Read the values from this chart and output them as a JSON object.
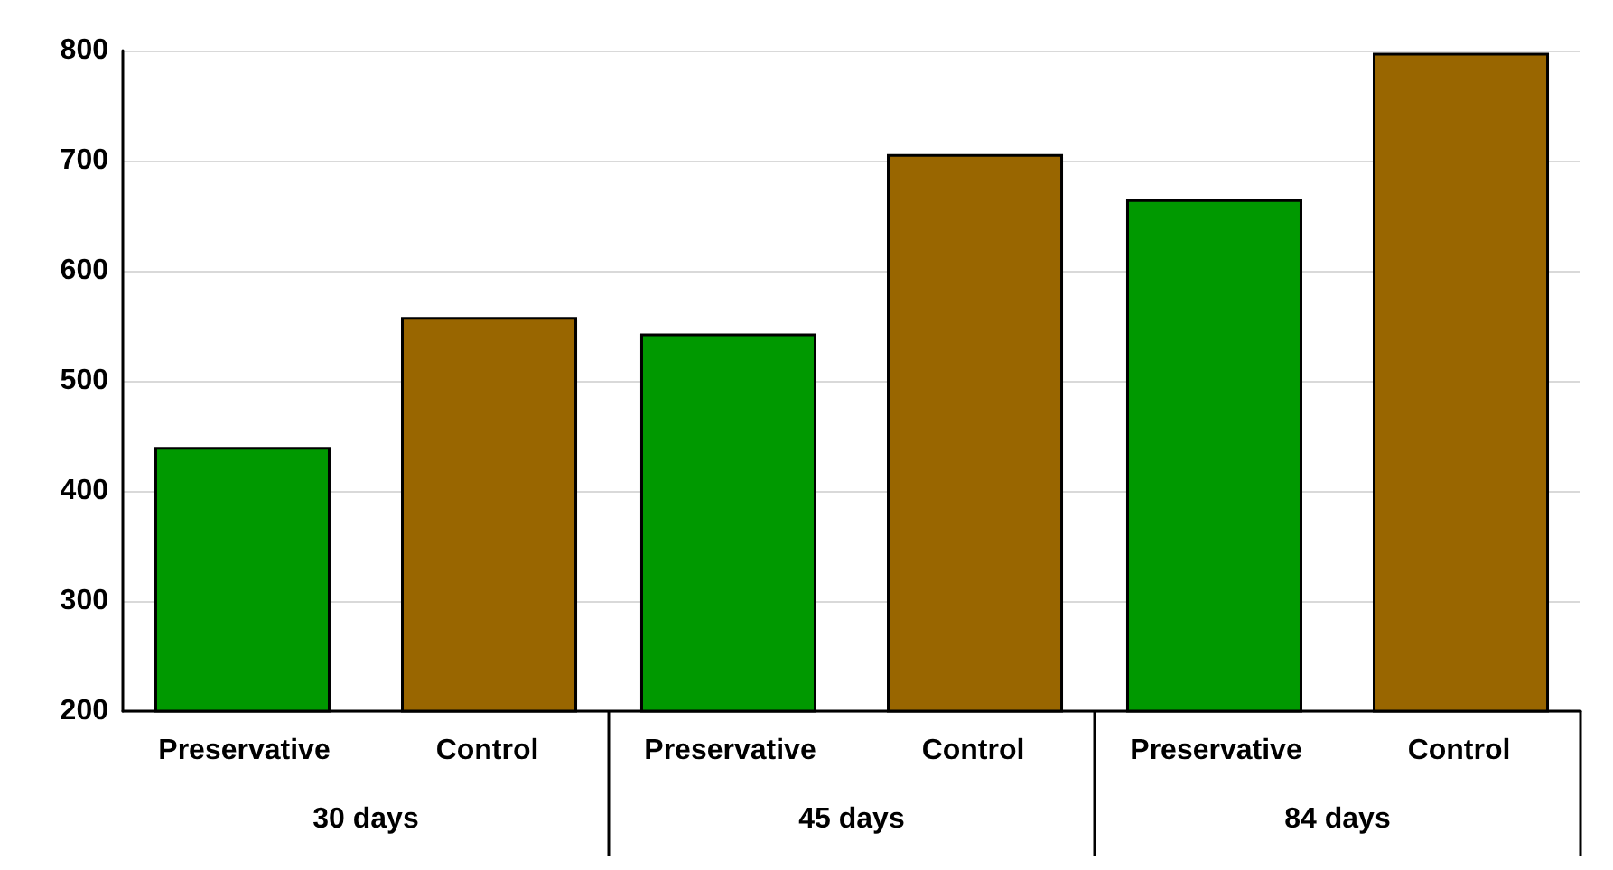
{
  "chart_data": {
    "type": "bar",
    "categories": [
      "30 days",
      "45 days",
      "84 days"
    ],
    "series": [
      {
        "name": "Preservative",
        "color": "#009900",
        "values": [
          440,
          543,
          665
        ]
      },
      {
        "name": "Control",
        "color": "#996600",
        "values": [
          558,
          706,
          798
        ]
      }
    ],
    "ylim": [
      200,
      800
    ],
    "yticks": [
      200,
      300,
      400,
      500,
      600,
      700,
      800
    ],
    "grid": "y"
  }
}
